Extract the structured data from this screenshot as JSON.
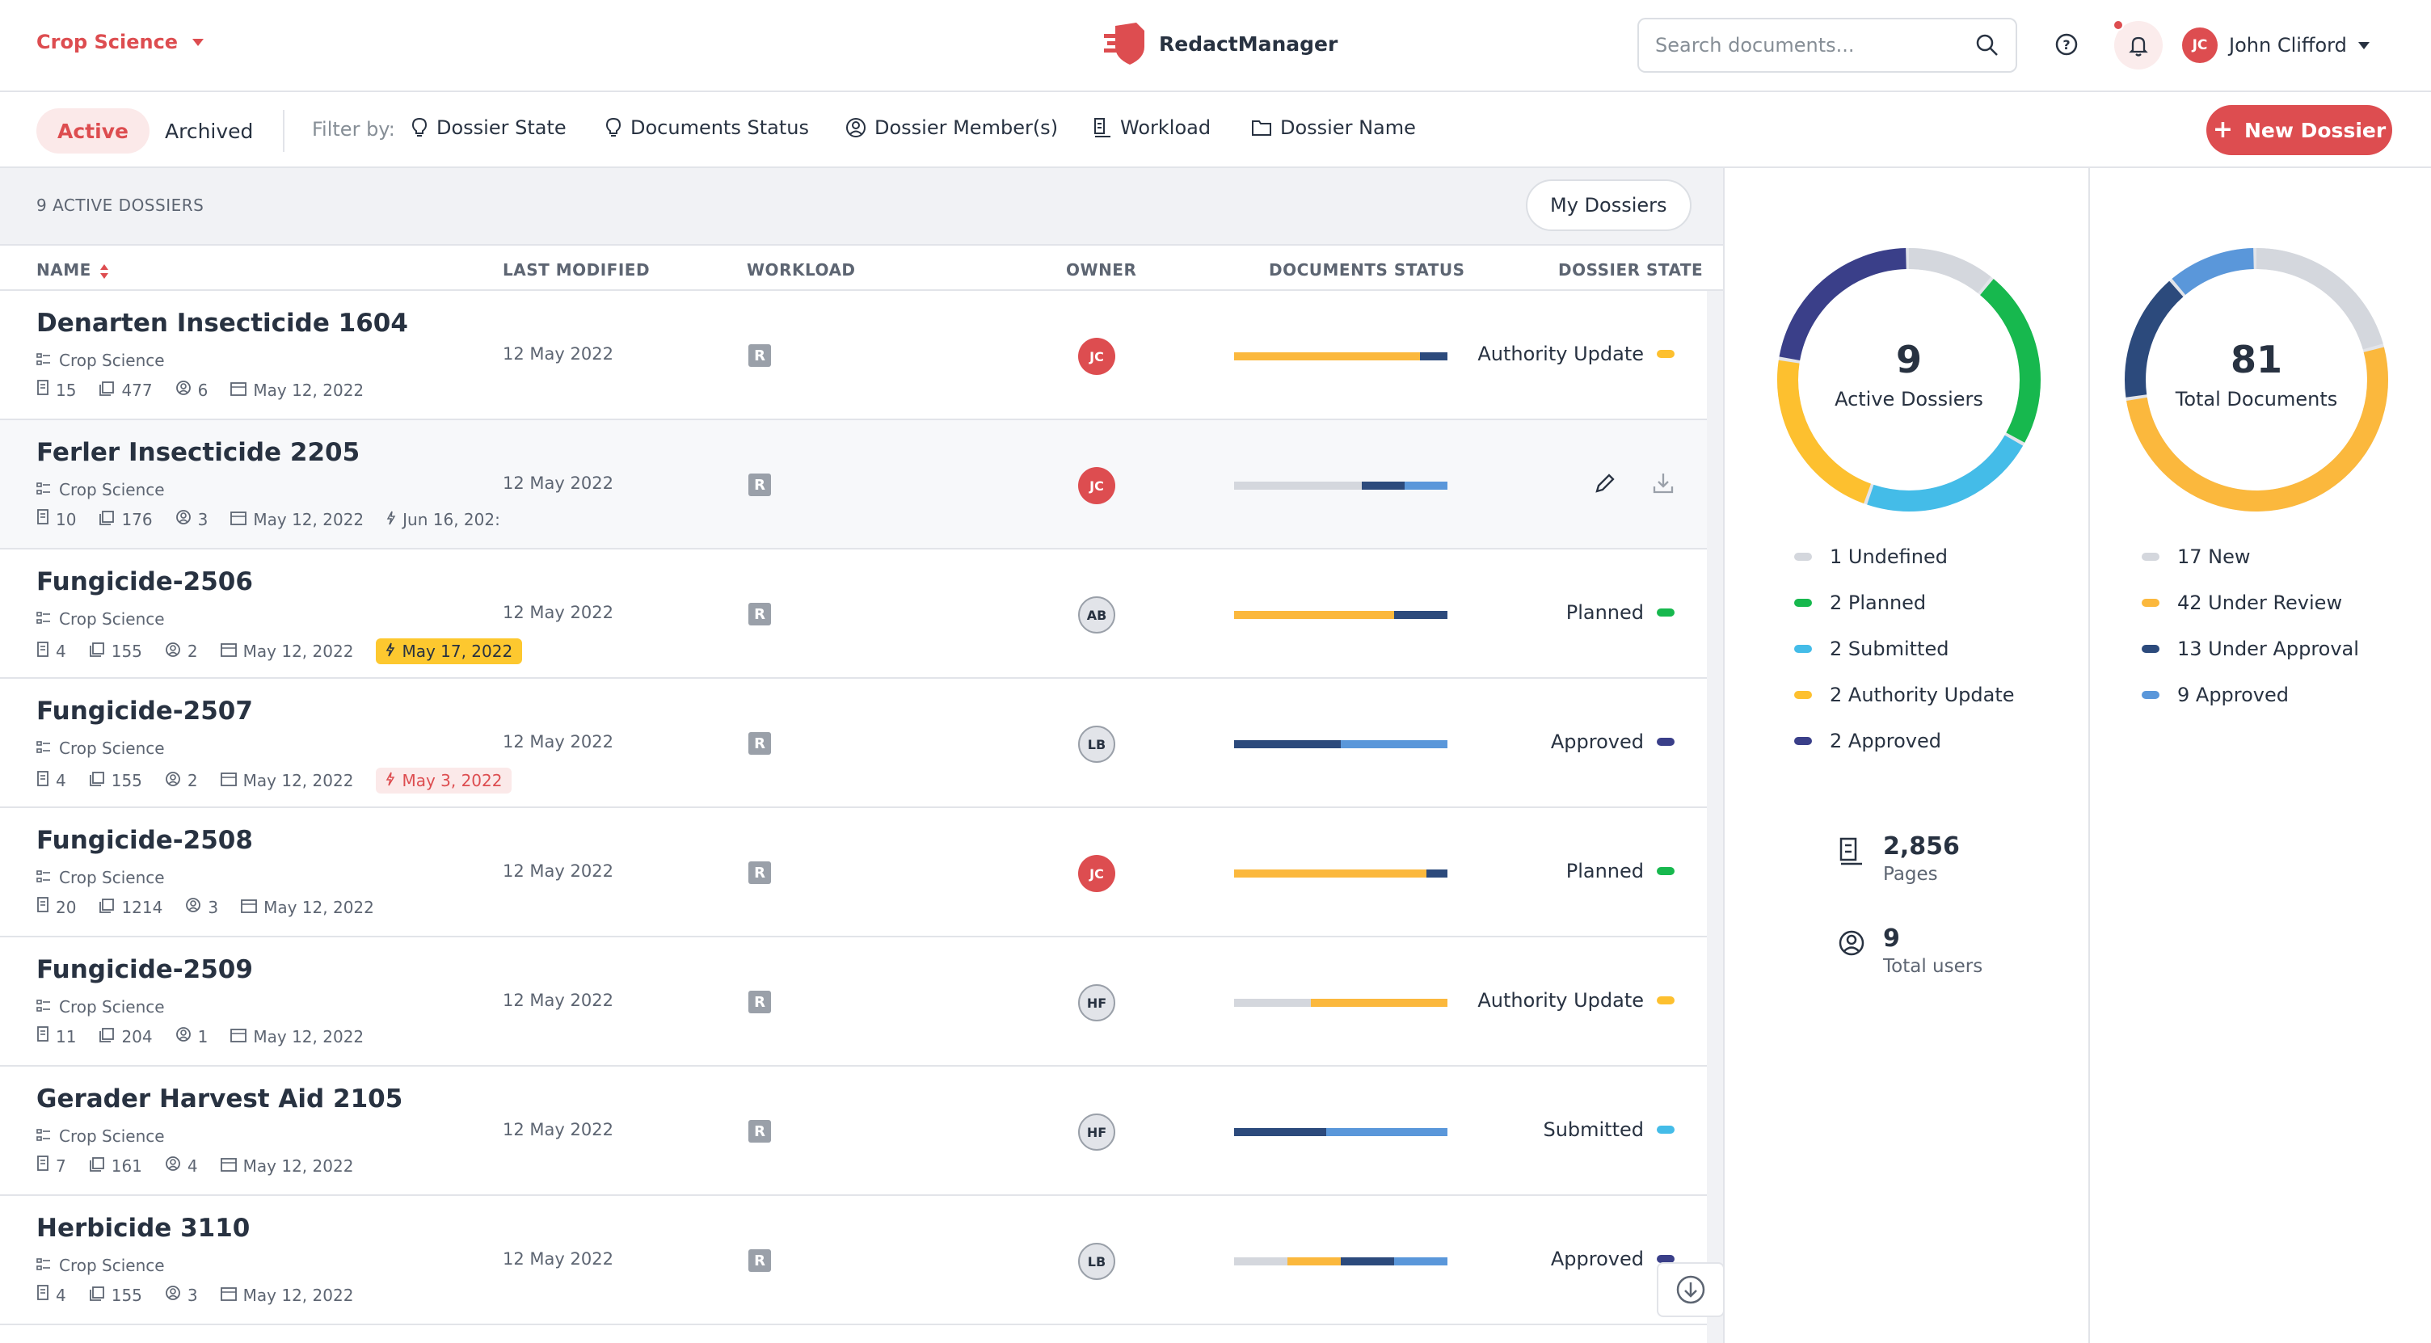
{
  "header": {
    "workspace": "Crop Science",
    "brand": "RedactManager",
    "search_placeholder": "Search documents...",
    "user": {
      "initials": "JC",
      "name": "John Clifford"
    }
  },
  "filterbar": {
    "tab_active": "Active",
    "tab_archived": "Archived",
    "filter_label": "Filter by:",
    "filters": [
      "Dossier State",
      "Documents Status",
      "Dossier Member(s)",
      "Workload",
      "Dossier Name"
    ],
    "new_button": "New Dossier"
  },
  "list": {
    "count_label": "9 ACTIVE DOSSIERS",
    "my_dossiers": "My Dossiers",
    "columns": {
      "name": "NAME",
      "modified": "LAST MODIFIED",
      "workload": "WORKLOAD",
      "owner": "OWNER",
      "status": "DOCUMENTS STATUS",
      "state": "DOSSIER STATE"
    },
    "rows": [
      {
        "name": "Denarten Insecticide 1604",
        "team": "Crop Science",
        "docs": "15",
        "pages": "477",
        "members": "6",
        "created": "May 12, 2022",
        "due": "",
        "modified": "12 May 2022",
        "workload": "R",
        "owner": "JC",
        "state": "Authority Update"
      },
      {
        "name": "Ferler Insecticide 2205",
        "team": "Crop Science",
        "docs": "10",
        "pages": "176",
        "members": "3",
        "created": "May 12, 2022",
        "due": "Jun 16, 202:",
        "modified": "12 May 2022",
        "workload": "R",
        "owner": "JC",
        "state": ""
      },
      {
        "name": "Fungicide-2506",
        "team": "Crop Science",
        "docs": "4",
        "pages": "155",
        "members": "2",
        "created": "May 12, 2022",
        "due": "May 17, 2022",
        "modified": "12 May 2022",
        "workload": "R",
        "owner": "AB",
        "state": "Planned"
      },
      {
        "name": "Fungicide-2507",
        "team": "Crop Science",
        "docs": "4",
        "pages": "155",
        "members": "2",
        "created": "May 12, 2022",
        "due": "May 3, 2022",
        "modified": "12 May 2022",
        "workload": "R",
        "owner": "LB",
        "state": "Approved"
      },
      {
        "name": "Fungicide-2508",
        "team": "Crop Science",
        "docs": "20",
        "pages": "1214",
        "members": "3",
        "created": "May 12, 2022",
        "due": "",
        "modified": "12 May 2022",
        "workload": "R",
        "owner": "JC",
        "state": "Planned"
      },
      {
        "name": "Fungicide-2509",
        "team": "Crop Science",
        "docs": "11",
        "pages": "204",
        "members": "1",
        "created": "May 12, 2022",
        "due": "",
        "modified": "12 May 2022",
        "workload": "R",
        "owner": "HF",
        "state": "Authority Update"
      },
      {
        "name": "Gerader Harvest Aid 2105",
        "team": "Crop Science",
        "docs": "7",
        "pages": "161",
        "members": "4",
        "created": "May 12, 2022",
        "due": "",
        "modified": "12 May 2022",
        "workload": "R",
        "owner": "HF",
        "state": "Submitted"
      },
      {
        "name": "Herbicide 3110",
        "team": "Crop Science",
        "docs": "4",
        "pages": "155",
        "members": "3",
        "created": "May 12, 2022",
        "due": "",
        "modified": "12 May 2022",
        "workload": "R",
        "owner": "LB",
        "state": "Approved"
      }
    ]
  },
  "stats": {
    "dossiers": {
      "number": "9",
      "label": "Active Dossiers"
    },
    "dossier_legend": [
      "1 Undefined",
      "2 Planned",
      "2 Submitted",
      "2 Authority Update",
      "2 Approved"
    ],
    "documents": {
      "number": "81",
      "label": "Total Documents"
    },
    "document_legend": [
      "17 New",
      "42 Under Review",
      "13 Under Approval",
      "9 Approved"
    ],
    "pages": {
      "number": "2,856",
      "label": "Pages"
    },
    "users": {
      "number": "9",
      "label": "Total users"
    }
  },
  "colors": {
    "brand": "#dd4d50",
    "new": "#d4d7dd",
    "planned": "#17b84e",
    "submitted": "#44bce8",
    "authority_update": "#fdc02f",
    "approved": "#3a3f89",
    "under_review": "#fbb83d",
    "under_approval": "#2c4a7c",
    "doc_approved": "#5a97da"
  }
}
